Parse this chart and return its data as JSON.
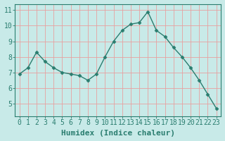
{
  "xlabel": "Humidex (Indice chaleur)",
  "x_values": [
    0,
    1,
    2,
    3,
    4,
    5,
    6,
    7,
    8,
    9,
    10,
    11,
    12,
    13,
    14,
    15,
    16,
    17,
    18,
    19,
    20,
    21,
    22,
    23
  ],
  "y_values": [
    6.9,
    7.3,
    8.3,
    7.7,
    7.3,
    7.0,
    6.9,
    6.8,
    6.5,
    6.9,
    8.0,
    9.0,
    9.7,
    10.1,
    10.2,
    10.9,
    9.7,
    9.3,
    8.6,
    8.0,
    7.3,
    6.5,
    5.6,
    4.7
  ],
  "line_color": "#2a7d6f",
  "marker": "D",
  "marker_size": 2.5,
  "bg_color": "#c8eae8",
  "grid_color": "#e8a0a0",
  "ylim": [
    4.2,
    11.4
  ],
  "yticks": [
    5,
    6,
    7,
    8,
    9,
    10,
    11
  ],
  "xlim": [
    -0.5,
    23.5
  ],
  "xlabel_fontsize": 8,
  "tick_fontsize": 7,
  "line_width": 1.0,
  "spine_color": "#2a7d6f",
  "tick_color": "#2a7d6f",
  "label_color": "#2a7d6f"
}
